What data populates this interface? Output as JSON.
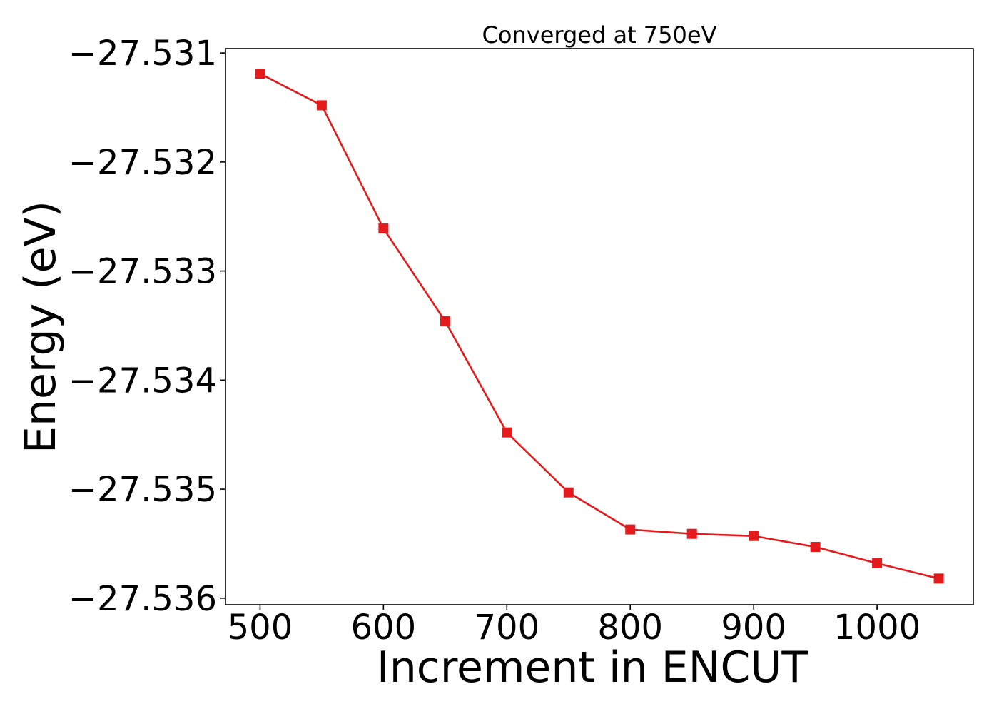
{
  "chart_data": {
    "type": "line",
    "title": "Converged at 750eV",
    "xlabel": "Increment in ENCUT",
    "ylabel": "Energy (eV)",
    "xlim": [
      472,
      1078
    ],
    "ylim": [
      -27.53606,
      -27.53096
    ],
    "x_ticks": [
      500,
      600,
      700,
      800,
      900,
      1000
    ],
    "x_tick_labels": [
      "500",
      "600",
      "700",
      "800",
      "900",
      "1000"
    ],
    "y_ticks": [
      -27.531,
      -27.532,
      -27.533,
      -27.534,
      -27.535,
      -27.536
    ],
    "y_tick_labels": [
      "−27.531",
      "−27.532",
      "−27.533",
      "−27.534",
      "−27.535",
      "−27.536"
    ],
    "grid": false,
    "series": [
      {
        "color": "#e41a1c",
        "marker": "square",
        "x": [
          500,
          550,
          600,
          650,
          700,
          750,
          800,
          850,
          900,
          950,
          1000,
          1050
        ],
        "y": [
          -27.53119,
          -27.53148,
          -27.53261,
          -27.53346,
          -27.53448,
          -27.53503,
          -27.53537,
          -27.53541,
          -27.53543,
          -27.53553,
          -27.53568,
          -27.53582
        ]
      }
    ]
  }
}
